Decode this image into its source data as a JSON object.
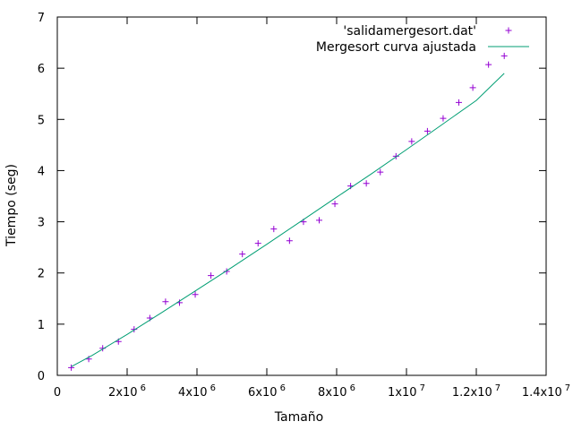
{
  "chart_data": {
    "type": "scatter",
    "xlabel": "Tamaño",
    "ylabel": "Tiempo (seg)",
    "xlim": [
      0,
      14000000
    ],
    "ylim": [
      0,
      7
    ],
    "x_ticks": [
      {
        "value": 0,
        "label": "0"
      },
      {
        "value": 2000000,
        "base": "2x10",
        "exp": "6"
      },
      {
        "value": 4000000,
        "base": "4x10",
        "exp": "6"
      },
      {
        "value": 6000000,
        "base": "6x10",
        "exp": "6"
      },
      {
        "value": 8000000,
        "base": "8x10",
        "exp": "6"
      },
      {
        "value": 10000000,
        "base": "1x10",
        "exp": "7"
      },
      {
        "value": 12000000,
        "base": "1.2x10",
        "exp": "7"
      },
      {
        "value": 14000000,
        "base": "1.4x10",
        "exp": "7"
      }
    ],
    "y_ticks": [
      {
        "value": 0,
        "label": "0"
      },
      {
        "value": 1,
        "label": "1"
      },
      {
        "value": 2,
        "label": "2"
      },
      {
        "value": 3,
        "label": "3"
      },
      {
        "value": 4,
        "label": "4"
      },
      {
        "value": 5,
        "label": "5"
      },
      {
        "value": 6,
        "label": "6"
      },
      {
        "value": 7,
        "label": "7"
      }
    ],
    "grid": false,
    "legend_position": "top-right",
    "series": [
      {
        "name": "'salidamergesort.dat'",
        "kind": "points",
        "marker": "plus",
        "color": "#9400d3",
        "x": [
          400000,
          900000,
          1300000,
          1750000,
          2200000,
          2650000,
          3100000,
          3500000,
          3950000,
          4400000,
          4850000,
          5300000,
          5750000,
          6200000,
          6650000,
          7050000,
          7500000,
          7950000,
          8400000,
          8850000,
          9250000,
          9700000,
          10150000,
          10600000,
          11050000,
          11500000,
          11900000,
          12350000,
          12800000
        ],
        "y": [
          0.15,
          0.32,
          0.53,
          0.66,
          0.9,
          1.12,
          1.44,
          1.42,
          1.58,
          1.95,
          2.03,
          2.37,
          2.58,
          2.86,
          2.63,
          3.0,
          3.03,
          3.35,
          3.7,
          3.75,
          3.97,
          4.28,
          4.57,
          4.77,
          5.02,
          5.33,
          5.62,
          6.07,
          6.24
        ]
      },
      {
        "name": "Mergesort curva ajustada",
        "kind": "line",
        "color": "#009e73",
        "x": [
          400000,
          1000000,
          2000000,
          3000000,
          4000000,
          5000000,
          6000000,
          7000000,
          8000000,
          9000000,
          10000000,
          11000000,
          12000000,
          12800000
        ],
        "y": [
          0.17,
          0.39,
          0.8,
          1.23,
          1.67,
          2.11,
          2.56,
          3.02,
          3.48,
          3.94,
          4.41,
          4.89,
          5.37,
          5.9
        ]
      }
    ]
  }
}
